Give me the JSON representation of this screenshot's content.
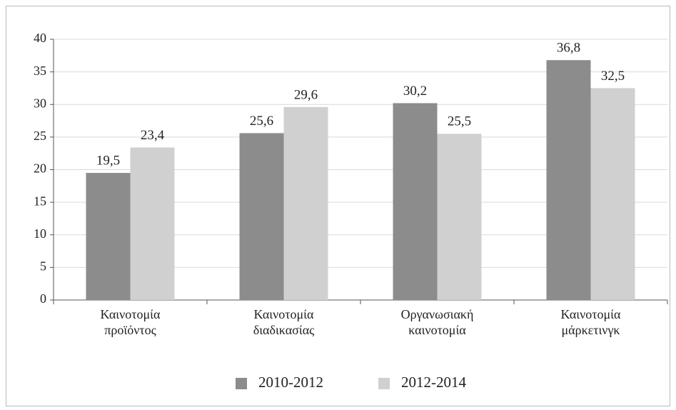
{
  "chart_data": {
    "type": "bar",
    "categories": [
      "Καινοτομία προϊόντος",
      "Καινοτομία διαδικασίας",
      "Οργανωσιακή καινοτομία",
      "Καινοτομία μάρκετινγκ"
    ],
    "series": [
      {
        "name": "2010-2012",
        "color": "#8c8c8c",
        "values": [
          19.5,
          25.6,
          30.2,
          36.8
        ],
        "value_labels": [
          "19,5",
          "25,6",
          "30,2",
          "36,8"
        ]
      },
      {
        "name": "2012-2014",
        "color": "#d0d0d0",
        "values": [
          23.4,
          29.6,
          25.5,
          32.5
        ],
        "value_labels": [
          "23,4",
          "29,6",
          "25,5",
          "32,5"
        ]
      }
    ],
    "ylim": [
      0,
      40
    ],
    "yticks": [
      0,
      5,
      10,
      15,
      20,
      25,
      30,
      35,
      40
    ],
    "grid": true,
    "legend": "bottom"
  }
}
